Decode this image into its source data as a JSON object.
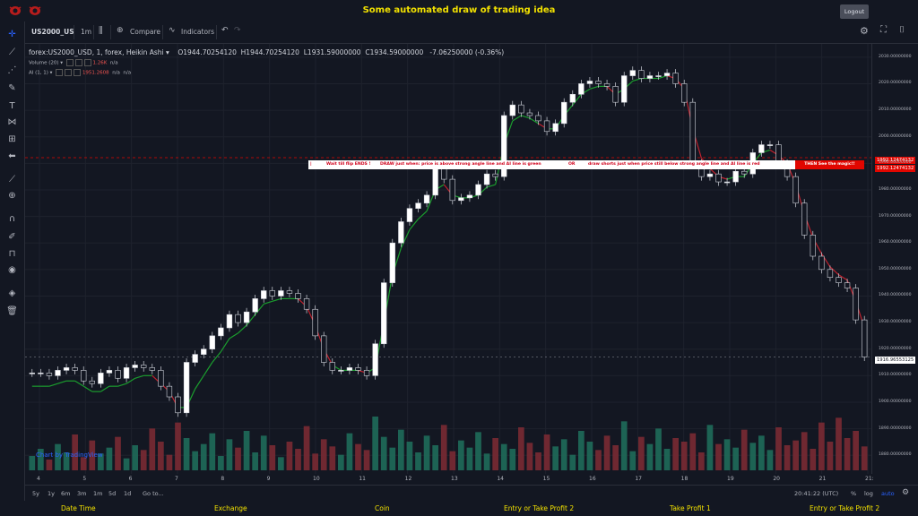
{
  "header": {
    "title": "Some automated draw of trading idea",
    "logout_label": "Logout"
  },
  "toolbar": {
    "symbol": "US2000_US",
    "interval": "1m",
    "compare_label": "Compare",
    "indicators_label": "Indicators"
  },
  "legend": {
    "name": "forex:US2000_USD, 1, forex, Heikin Ashi",
    "open": "O1944.70254120",
    "high": "H1944.70254120",
    "low": "L1931.59000000",
    "close": "C1934.59000000",
    "change": "-7.06250000 (-0.36%)",
    "volume_label": "Volume (20)",
    "volume_value": "1.26K",
    "volume_na": "n/a",
    "ai_label": "AI (1, 1)",
    "ai_value": "1951.2608",
    "ai_na1": "n/a",
    "ai_na2": "n/a"
  },
  "annotation": {
    "part1": "Wait till flip ENDS !",
    "part2": "DRAW just when:  price is above strong angle line and AI line is green",
    "part3": "OR",
    "part4": "draw shorts just when price still below strong angle line and AI line is red",
    "magic": "THEN See the magic!!"
  },
  "price_labels": {
    "upper": "1992.12474132",
    "lower": "1992.12474132",
    "current": "1916.96553125"
  },
  "watermark": "Chart by TradingView",
  "bottombar": {
    "ranges": [
      "5y",
      "1y",
      "6m",
      "3m",
      "1m",
      "5d",
      "1d"
    ],
    "goto": "Go to...",
    "time": "20:41:22 (UTC)",
    "pct": "%",
    "log": "log",
    "auto": "auto"
  },
  "footer": [
    "Date Time",
    "Exchange",
    "Coin",
    "Entry or Take Profit 2",
    "Take Profit 1",
    "Entry or Take Profit 2"
  ],
  "colors": {
    "up": "#d1d4dc",
    "down": "#ffffff",
    "ai_green": "#1b9e2e",
    "ai_red": "#c0212d",
    "vol_up": "#26a69a",
    "vol_down": "#ef5350",
    "accent": "#f2e100"
  },
  "chart_data": {
    "type": "line",
    "style": "heikin-ashi candlesticks with AI trend line and volume",
    "ylim": [
      1875,
      2035
    ],
    "yticks": [
      1880,
      1890,
      1900,
      1910,
      1920,
      1930,
      1940,
      1950,
      1960,
      1970,
      1980,
      1990,
      2000,
      2010,
      2020,
      2030
    ],
    "xticks": [
      "4",
      "5",
      "6",
      "7",
      "8",
      "9",
      "10",
      "11",
      "12",
      "13",
      "14",
      "15",
      "16",
      "17",
      "18",
      "19",
      "20",
      "21",
      "21:"
    ],
    "close": [
      1911,
      1911,
      1910,
      1912,
      1913,
      1912,
      1908,
      1907,
      1911,
      1912,
      1909,
      1913,
      1914,
      1913,
      1912,
      1906,
      1902,
      1896,
      1915,
      1918,
      1920,
      1925,
      1928,
      1933,
      1930,
      1934,
      1939,
      1942,
      1940,
      1942,
      1941,
      1939,
      1935,
      1925,
      1915,
      1912,
      1912,
      1913,
      1912,
      1910,
      1922,
      1945,
      1960,
      1968,
      1973,
      1975,
      1978,
      1989,
      1984,
      1976,
      1977,
      1978,
      1982,
      1986,
      1985,
      2008,
      2012,
      2009,
      2008,
      2006,
      2002,
      2005,
      2013,
      2016,
      2020,
      2021,
      2020,
      2019,
      2013,
      2023,
      2025,
      2022,
      2023,
      2023,
      2024,
      2020,
      2013,
      1990,
      1985,
      1986,
      1983,
      1983,
      1987,
      1986,
      1994,
      1997,
      1997,
      1990,
      1985,
      1975,
      1963,
      1955,
      1950,
      1947,
      1945,
      1943,
      1931,
      1917
    ],
    "ai_line": [
      1906,
      1906,
      1906,
      1907,
      1908,
      1908,
      1906,
      1904,
      1904,
      1906,
      1906,
      1907,
      1909,
      1910,
      1910,
      1907,
      1904,
      1898,
      1898,
      1905,
      1910,
      1915,
      1919,
      1924,
      1926,
      1929,
      1933,
      1937,
      1938,
      1939,
      1939,
      1939,
      1936,
      1929,
      1920,
      1914,
      1912,
      1912,
      1912,
      1911,
      1913,
      1930,
      1948,
      1958,
      1965,
      1969,
      1972,
      1980,
      1982,
      1978,
      1977,
      1977,
      1978,
      1981,
      1982,
      1997,
      2006,
      2008,
      2007,
      2005,
      2003,
      2003,
      2008,
      2012,
      2016,
      2018,
      2019,
      2019,
      2016,
      2018,
      2021,
      2022,
      2022,
      2022,
      2023,
      2022,
      2018,
      2003,
      1992,
      1988,
      1985,
      1984,
      1985,
      1985,
      1990,
      1994,
      1995,
      1993,
      1990,
      1982,
      1971,
      1962,
      1956,
      1951,
      1948,
      1946,
      1938,
      1928
    ],
    "volume": [
      12,
      18,
      9,
      22,
      15,
      30,
      11,
      25,
      14,
      19,
      28,
      10,
      21,
      17,
      35,
      24,
      13,
      40,
      27,
      16,
      22,
      31,
      12,
      26,
      19,
      33,
      15,
      29,
      21,
      11,
      24,
      18,
      37,
      14,
      26,
      20,
      13,
      31,
      22,
      17,
      45,
      28,
      19,
      34,
      24,
      15,
      29,
      21,
      38,
      16,
      25,
      19,
      32,
      14,
      27,
      22,
      18,
      36,
      23,
      15,
      30,
      20,
      26,
      13,
      33,
      24,
      17,
      29,
      21,
      41,
      16,
      28,
      22,
      35,
      18,
      27,
      24,
      31,
      15,
      38,
      22,
      26,
      19,
      34,
      23,
      29,
      17,
      36,
      21,
      25,
      32,
      18,
      40,
      24,
      44,
      27,
      33,
      20
    ],
    "vol_ylim": [
      0,
      60
    ]
  }
}
